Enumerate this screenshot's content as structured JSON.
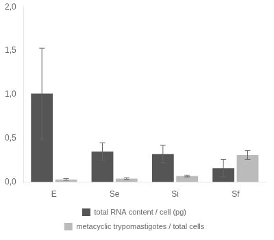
{
  "chart_data": {
    "type": "bar",
    "categories": [
      "E",
      "Se",
      "Si",
      "Sf"
    ],
    "series": [
      {
        "name": "total RNA content / cell (pg)",
        "color": "#555555",
        "values": [
          1.01,
          0.35,
          0.32,
          0.16
        ],
        "errors": [
          0.52,
          0.1,
          0.1,
          0.1
        ]
      },
      {
        "name": "metacyclic trypomastigotes / total cells",
        "color": "#bbbbbb",
        "values": [
          0.03,
          0.04,
          0.07,
          0.31
        ],
        "errors": [
          0.01,
          0.01,
          0.01,
          0.05
        ]
      }
    ],
    "ylim": [
      0,
      2.0
    ],
    "yticks": [
      {
        "value": 0.0,
        "label": "0,0"
      },
      {
        "value": 0.5,
        "label": "0,5"
      },
      {
        "value": 1.0,
        "label": "1,0"
      },
      {
        "value": 1.5,
        "label": "1,5"
      },
      {
        "value": 2.0,
        "label": "2,0"
      }
    ],
    "grid": false,
    "legend": "bottom"
  }
}
